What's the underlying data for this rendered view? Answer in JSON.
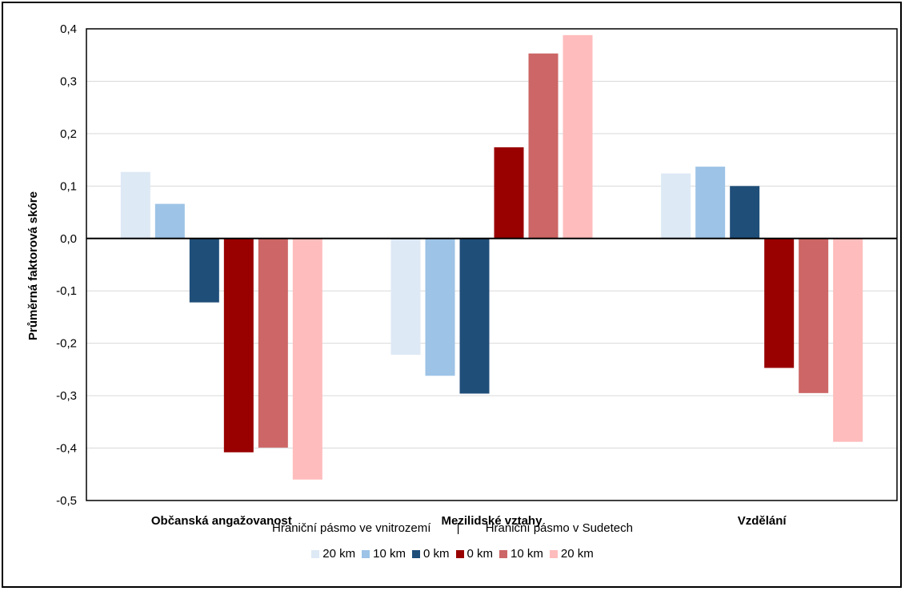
{
  "chart_data": {
    "type": "bar",
    "ylabel": "Průměrná faktorová skóre",
    "ylim": [
      -0.5,
      0.4
    ],
    "yticks": [
      "0,4",
      "0,3",
      "0,2",
      "0,1",
      "0,0",
      "-0,1",
      "-0,2",
      "-0,3",
      "-0,4",
      "-0,5"
    ],
    "ytick_values": [
      0.4,
      0.3,
      0.2,
      0.1,
      0.0,
      -0.1,
      -0.2,
      -0.3,
      -0.4,
      -0.5
    ],
    "grid": true,
    "categories": [
      "Občanská angažovanost",
      "Mezilidské vztahy",
      "Vzdělání"
    ],
    "legend_groups": [
      "Hraniční pásmo ve vnitrozemí",
      "|",
      "Hraniční pásmo v Sudetech"
    ],
    "series": [
      {
        "name": "20 km",
        "color": "#dde9f5",
        "values": [
          0.127,
          -0.222,
          0.124
        ]
      },
      {
        "name": "10 km",
        "color": "#9dc3e6",
        "values": [
          0.066,
          -0.262,
          0.137
        ]
      },
      {
        "name": "0 km",
        "color": "#1f4e79",
        "values": [
          -0.122,
          -0.296,
          0.1
        ]
      },
      {
        "name": "0 km",
        "color": "#990000",
        "values": [
          -0.408,
          0.174,
          -0.247
        ]
      },
      {
        "name": "10 km",
        "color": "#cd6666",
        "values": [
          -0.399,
          0.353,
          -0.295
        ]
      },
      {
        "name": "20 km",
        "color": "#ffbcbc",
        "values": [
          -0.46,
          0.388,
          -0.388
        ]
      }
    ],
    "legend_position": "bottom"
  }
}
